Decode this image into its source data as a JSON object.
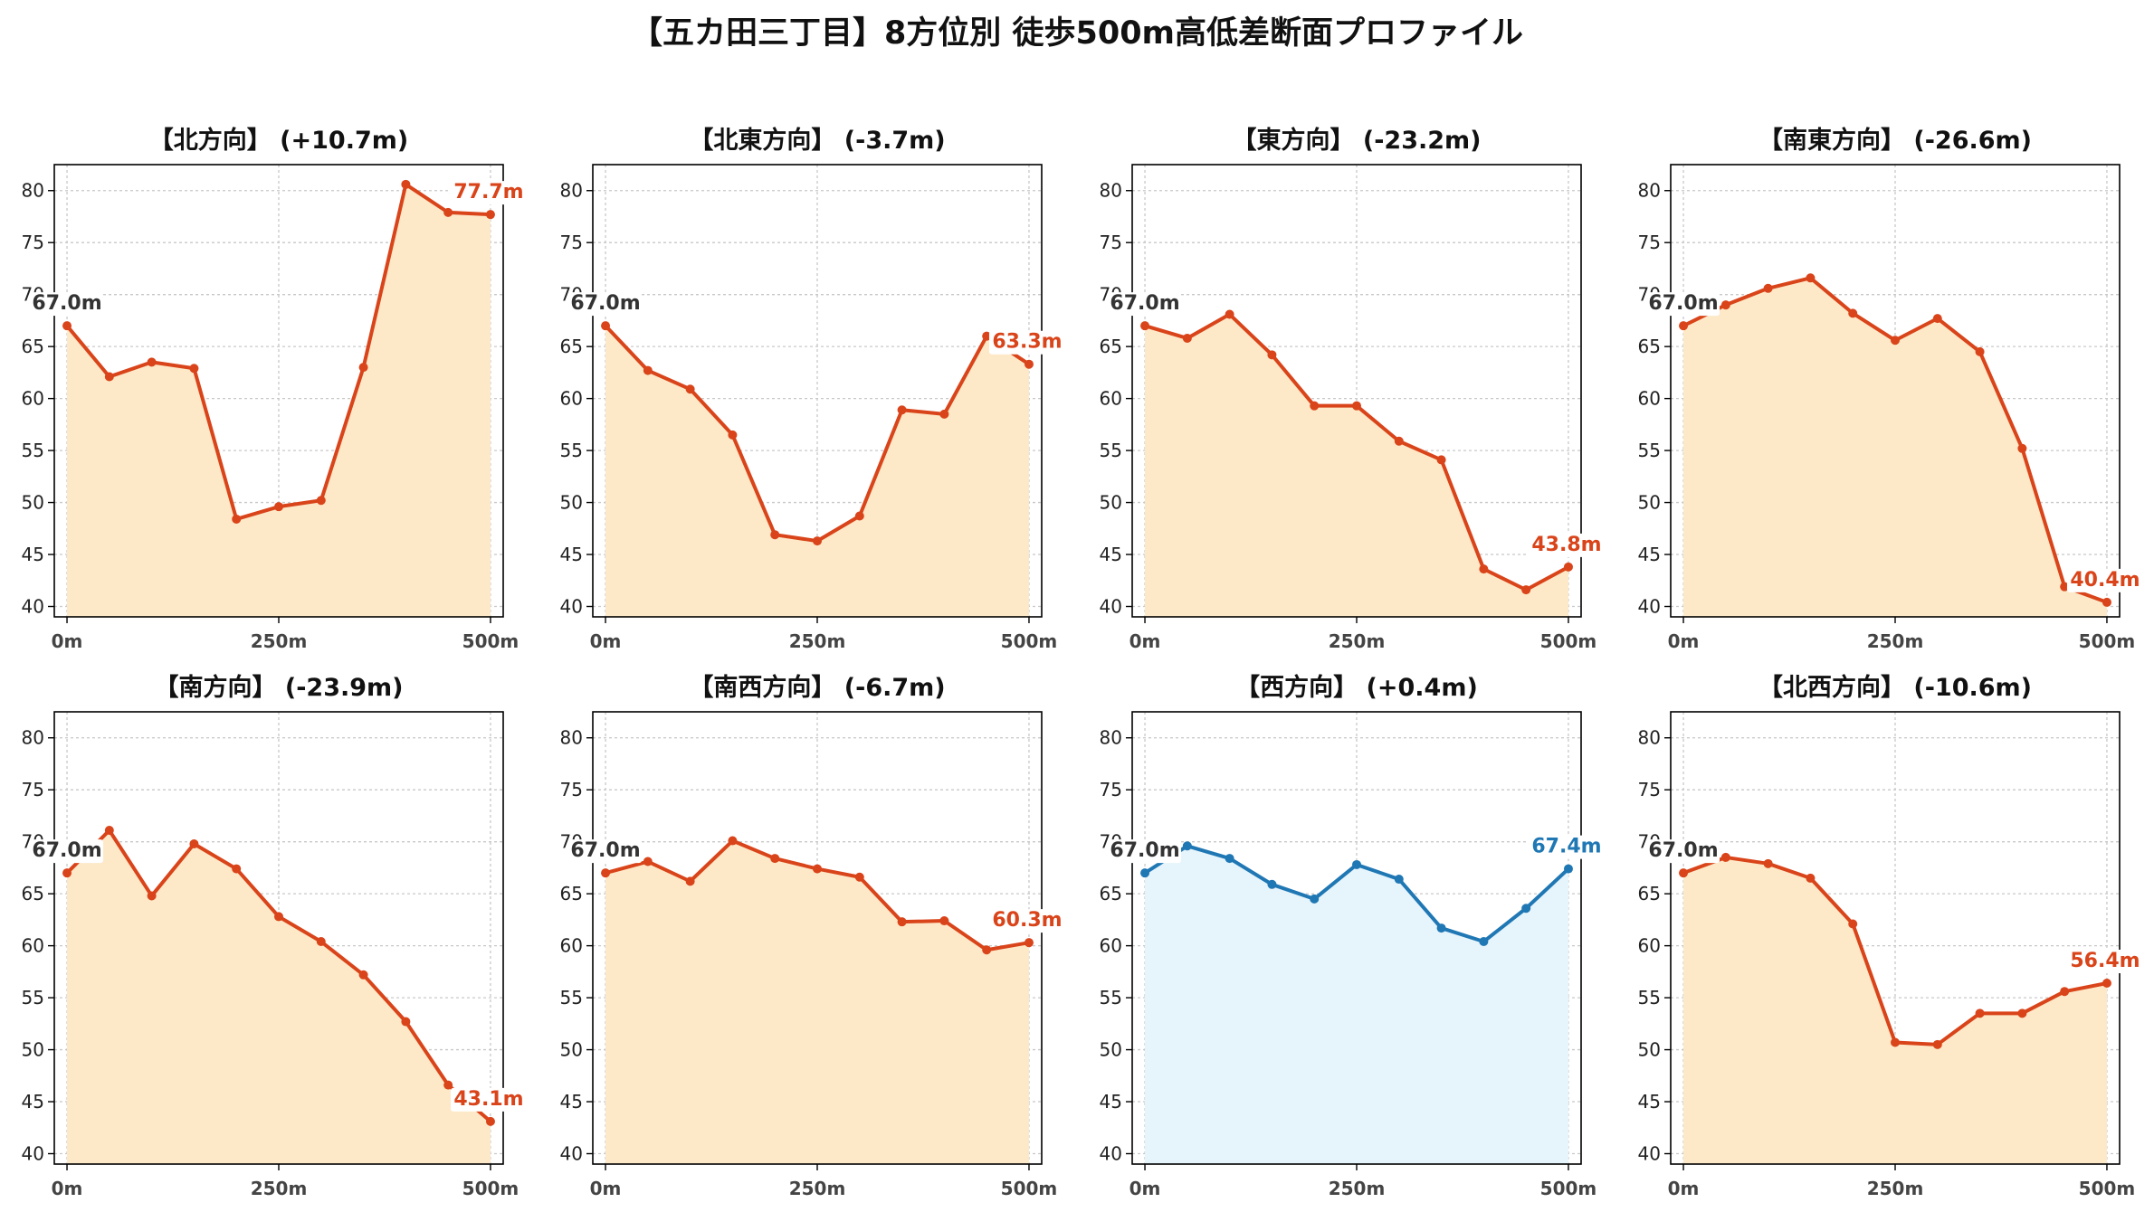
{
  "chart_data": {
    "type": "line",
    "title": "【五カ田三丁目】8方位別 徒歩500m高低差断面プロファイル",
    "x": [
      0,
      50,
      100,
      150,
      200,
      250,
      300,
      350,
      400,
      450,
      500
    ],
    "xticks": [
      0,
      250,
      500
    ],
    "xtick_labels": [
      "0m",
      "250m",
      "500m"
    ],
    "xlim": [
      -15,
      515
    ],
    "ylim": [
      39,
      82.5
    ],
    "yticks": [
      40,
      45,
      50,
      55,
      60,
      65,
      70,
      75,
      80
    ],
    "grid": true,
    "colors": {
      "down_line": "#d9441a",
      "down_fill": "#fde9c8",
      "up_line": "#1f77b4",
      "up_fill": "#e6f4fb",
      "start_label": "#333333"
    },
    "panels": [
      {
        "title": "【北方向】 (+10.7m)",
        "style": "down",
        "values": [
          67.0,
          62.1,
          63.5,
          62.9,
          48.4,
          49.6,
          50.2,
          63.0,
          80.6,
          77.9,
          77.7
        ],
        "start_label": "67.0m",
        "end_label": "77.7m"
      },
      {
        "title": "【北東方向】 (-3.7m)",
        "style": "down",
        "values": [
          67.0,
          62.7,
          60.9,
          56.5,
          46.9,
          46.3,
          48.7,
          58.9,
          58.5,
          66.0,
          63.3
        ],
        "start_label": "67.0m",
        "end_label": "63.3m"
      },
      {
        "title": "【東方向】 (-23.2m)",
        "style": "down",
        "values": [
          67.0,
          65.8,
          68.1,
          64.2,
          59.3,
          59.3,
          55.9,
          54.1,
          43.6,
          41.6,
          43.8
        ],
        "start_label": "67.0m",
        "end_label": "43.8m"
      },
      {
        "title": "【南東方向】 (-26.6m)",
        "style": "down",
        "values": [
          67.0,
          69.0,
          70.6,
          71.6,
          68.2,
          65.6,
          67.7,
          64.5,
          55.2,
          41.9,
          40.4
        ],
        "start_label": "67.0m",
        "end_label": "40.4m"
      },
      {
        "title": "【南方向】 (-23.9m)",
        "style": "down",
        "values": [
          67.0,
          71.1,
          64.8,
          69.8,
          67.4,
          62.8,
          60.4,
          57.2,
          52.7,
          46.6,
          43.1
        ],
        "start_label": "67.0m",
        "end_label": "43.1m"
      },
      {
        "title": "【南西方向】 (-6.7m)",
        "style": "down",
        "values": [
          67.0,
          68.1,
          66.2,
          70.1,
          68.4,
          67.4,
          66.6,
          62.3,
          62.4,
          59.6,
          60.3
        ],
        "start_label": "67.0m",
        "end_label": "60.3m"
      },
      {
        "title": "【西方向】 (+0.4m)",
        "style": "up",
        "values": [
          67.0,
          69.6,
          68.4,
          65.9,
          64.5,
          67.8,
          66.4,
          61.7,
          60.4,
          63.6,
          67.4
        ],
        "start_label": "67.0m",
        "end_label": "67.4m"
      },
      {
        "title": "【北西方向】 (-10.6m)",
        "style": "down",
        "values": [
          67.0,
          68.5,
          67.9,
          66.5,
          62.1,
          50.7,
          50.5,
          53.5,
          53.5,
          55.6,
          56.4
        ],
        "start_label": "67.0m",
        "end_label": "56.4m"
      }
    ]
  }
}
